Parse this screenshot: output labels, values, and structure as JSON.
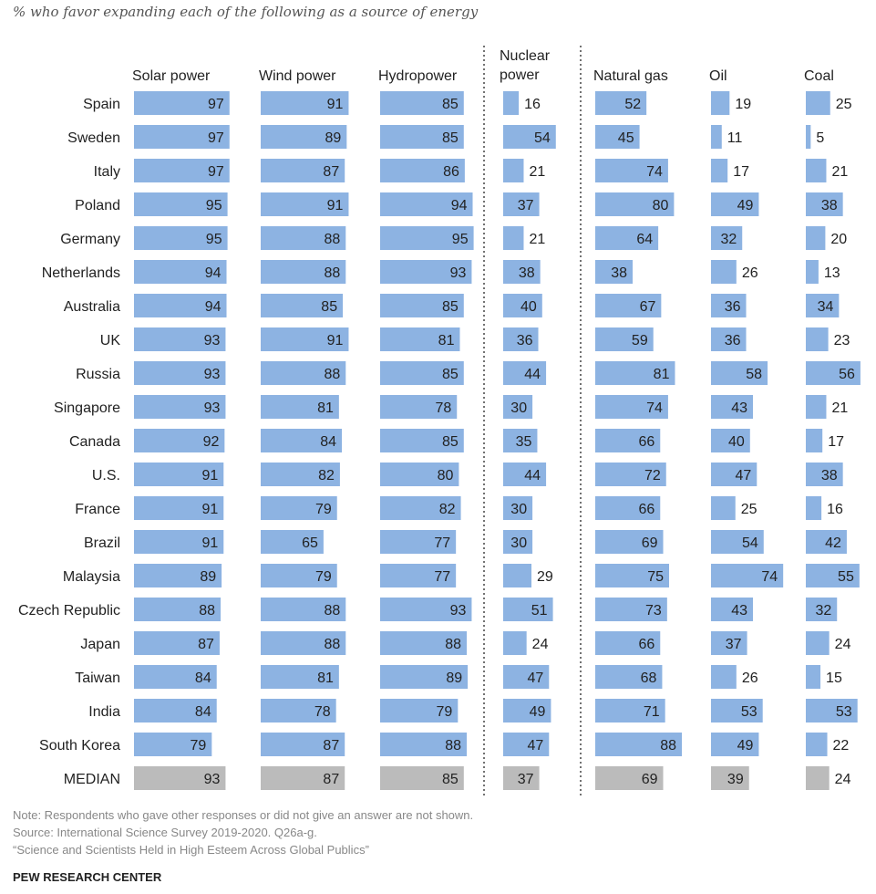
{
  "subtitle": "% who favor expanding each of the following as a source of energy",
  "chart_data": {
    "type": "bar",
    "title": "",
    "bar_color": "#8db3e2",
    "median_color": "#bbbbbb",
    "separator_style": "dotted",
    "categories": [
      "Spain",
      "Sweden",
      "Italy",
      "Poland",
      "Germany",
      "Netherlands",
      "Australia",
      "UK",
      "Russia",
      "Singapore",
      "Canada",
      "U.S.",
      "France",
      "Brazil",
      "Malaysia",
      "Czech Republic",
      "Japan",
      "Taiwan",
      "India",
      "South Korea"
    ],
    "median_label": "MEDIAN",
    "series": [
      {
        "name": "Solar power",
        "values": [
          97,
          97,
          97,
          95,
          95,
          94,
          94,
          93,
          93,
          93,
          92,
          91,
          91,
          91,
          89,
          88,
          87,
          84,
          84,
          79
        ],
        "median": 93
      },
      {
        "name": "Wind power",
        "values": [
          91,
          89,
          87,
          91,
          88,
          88,
          85,
          91,
          88,
          81,
          84,
          82,
          79,
          65,
          79,
          88,
          88,
          81,
          78,
          87
        ],
        "median": 87
      },
      {
        "name": "Hydropower",
        "values": [
          85,
          85,
          86,
          94,
          95,
          93,
          85,
          81,
          85,
          78,
          85,
          80,
          82,
          77,
          77,
          93,
          88,
          89,
          79,
          88
        ],
        "median": 85
      },
      {
        "name": "Nuclear power",
        "values": [
          16,
          54,
          21,
          37,
          21,
          38,
          40,
          36,
          44,
          30,
          35,
          44,
          30,
          30,
          29,
          51,
          24,
          47,
          49,
          47
        ],
        "median": 37
      },
      {
        "name": "Natural gas",
        "values": [
          52,
          45,
          74,
          80,
          64,
          38,
          67,
          59,
          81,
          74,
          66,
          72,
          66,
          69,
          75,
          73,
          66,
          68,
          71,
          88
        ],
        "median": 69
      },
      {
        "name": "Oil",
        "values": [
          19,
          11,
          17,
          49,
          32,
          26,
          36,
          36,
          58,
          43,
          40,
          47,
          25,
          54,
          74,
          43,
          37,
          26,
          53,
          49
        ],
        "median": 39
      },
      {
        "name": "Coal",
        "values": [
          25,
          5,
          21,
          38,
          20,
          13,
          34,
          23,
          56,
          21,
          17,
          38,
          16,
          42,
          55,
          32,
          24,
          15,
          53,
          22
        ],
        "median": 24
      }
    ],
    "xlim": [
      0,
      100
    ],
    "grid": false,
    "legend": "none"
  },
  "notes": {
    "note": "Note: Respondents who gave other responses or did not give an answer are not shown.",
    "source": "Source: International Science Survey 2019-2020. Q26a-g.",
    "report": "“Science and Scientists Held in High Esteem Across Global Publics”"
  },
  "brand": "PEW RESEARCH CENTER"
}
